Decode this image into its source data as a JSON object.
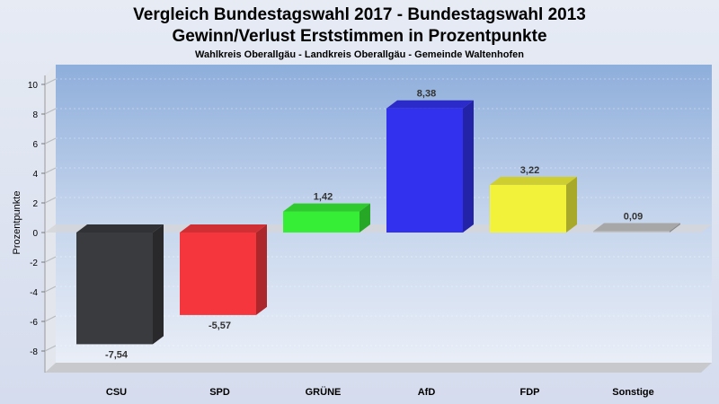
{
  "chart_data": {
    "type": "bar",
    "title": "Vergleich Bundestagswahl 2017 - Bundestagswahl 2013",
    "title2": "Gewinn/Verlust Erststimmen in Prozentpunkte",
    "subtitle": "Wahlkreis Oberallgäu - Landkreis Oberallgäu - Gemeinde Waltenhofen",
    "xlabel": "",
    "ylabel": "Prozentpunkte",
    "categories": [
      "CSU",
      "SPD",
      "GRÜNE",
      "AfD",
      "FDP",
      "Sonstige"
    ],
    "values": [
      -7.54,
      -5.57,
      1.42,
      8.38,
      3.22,
      0.09
    ],
    "value_labels": [
      "-7,54",
      "-5,57",
      "1,42",
      "8,38",
      "3,22",
      "0,09"
    ],
    "colors": [
      "#3a3b3f",
      "#f5373d",
      "#36ee36",
      "#3232ee",
      "#f2f23a",
      "#c4c4c4"
    ],
    "ylim": [
      -10,
      10
    ],
    "yticks": [
      -8,
      -6,
      -4,
      -2,
      0,
      2,
      4,
      6,
      8,
      10
    ],
    "ytick_labels": [
      "-8",
      "-6",
      "-4",
      "-2",
      "0",
      "2",
      "4",
      "6",
      "8",
      "10"
    ],
    "grid": true,
    "legend": "none"
  }
}
